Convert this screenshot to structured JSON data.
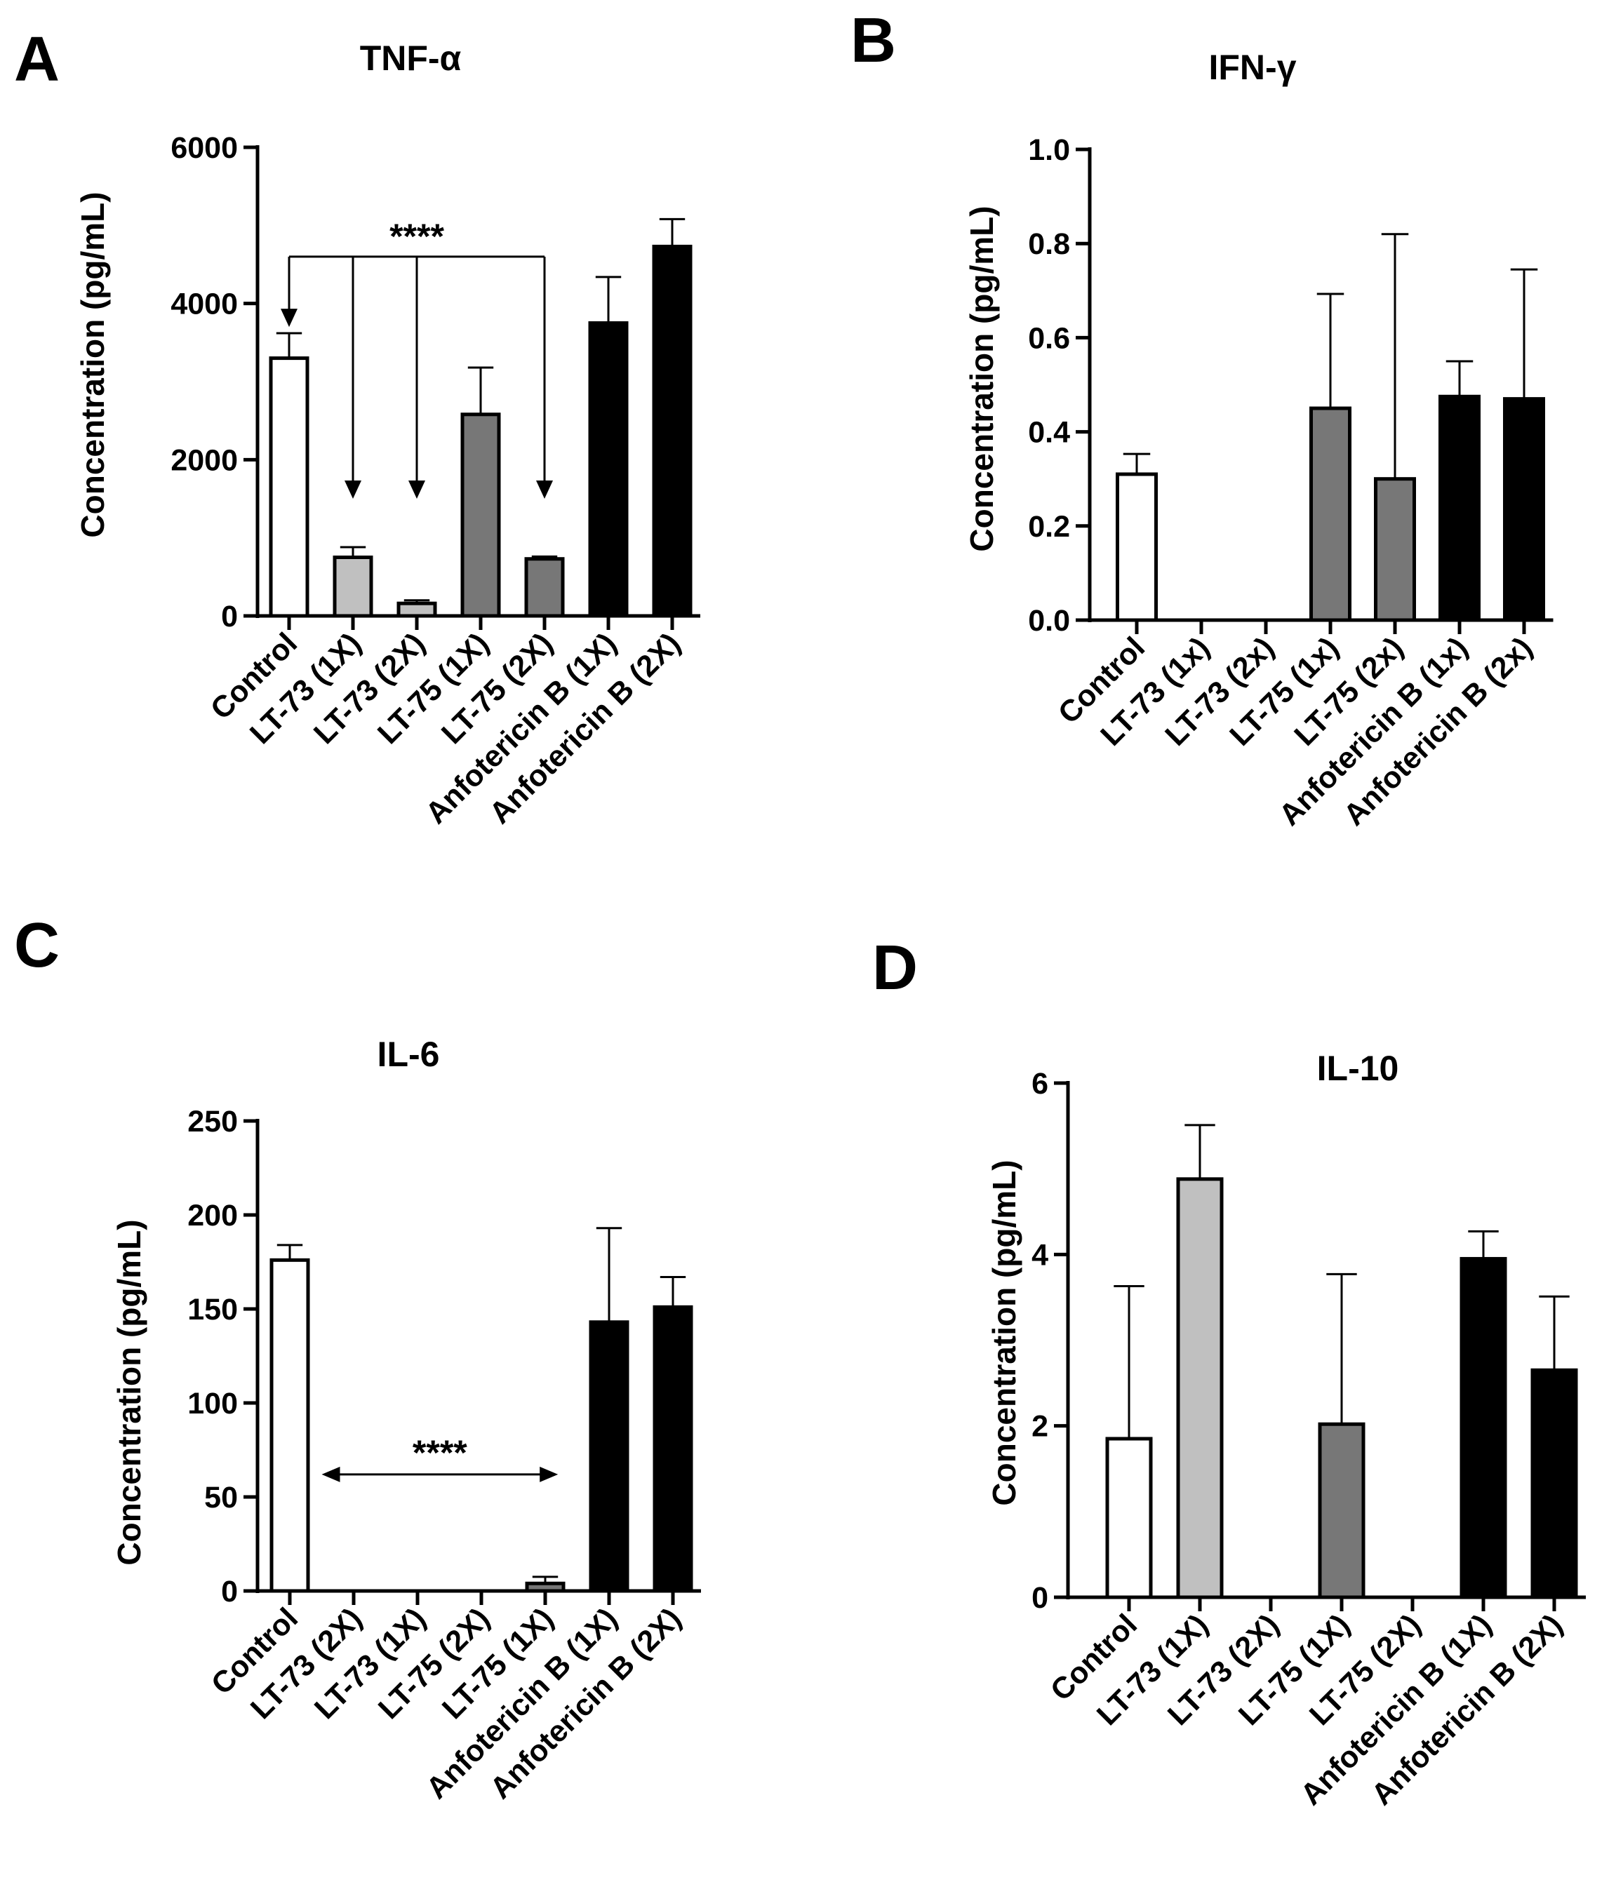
{
  "chart_data": [
    {
      "type": "bar",
      "panel_label": "A",
      "title": "TNF-α",
      "ylabel": "Concentration (pg/mL)",
      "xlabel": "",
      "ylim": [
        0,
        6000
      ],
      "yticks": [
        0,
        2000,
        4000,
        6000
      ],
      "ytick_labels": [
        "0",
        "2000",
        "4000",
        "6000"
      ],
      "categories": [
        "Control",
        "LT-73 (1X)",
        "LT-73 (2X)",
        "LT-75 (1X)",
        "LT-75 (2X)",
        "Anfotericin B (1X)",
        "Anfotericin B (2X)"
      ],
      "values": [
        3300,
        750,
        160,
        2580,
        730,
        3750,
        4730
      ],
      "errors": [
        320,
        130,
        40,
        600,
        30,
        590,
        350
      ],
      "fill_colors": [
        "#ffffff",
        "#c0c0c0",
        "#c0c0c0",
        "#777777",
        "#777777",
        "#000000",
        "#000000"
      ],
      "annotations": [
        {
          "type": "bracket-arrows",
          "label": "****",
          "from_index": 0,
          "to_index": 4,
          "arrow_indices": [
            0,
            1,
            2,
            4
          ],
          "y_value": 4600,
          "arrow_tips": [
            3700,
            1500,
            1500,
            1500
          ]
        }
      ]
    },
    {
      "type": "bar",
      "panel_label": "B",
      "title": "IFN-γ",
      "ylabel": "Concentration (pg/mL)",
      "xlabel": "",
      "ylim": [
        0,
        1.0
      ],
      "yticks": [
        0,
        0.2,
        0.4,
        0.6,
        0.8,
        1.0
      ],
      "ytick_labels": [
        "0.0",
        "0.2",
        "0.4",
        "0.6",
        "0.8",
        "1.0"
      ],
      "categories": [
        "Control",
        "LT-73 (1x)",
        "LT-73 (2x)",
        "LT-75 (1x)",
        "LT-75 (2x)",
        "Anfotericin B (1x)",
        "Anfotericin B (2x)"
      ],
      "values": [
        0.31,
        0,
        0,
        0.45,
        0.3,
        0.475,
        0.47
      ],
      "errors": [
        0.043,
        0,
        0,
        0.243,
        0.52,
        0.075,
        0.275
      ],
      "fill_colors": [
        "#ffffff",
        "#c0c0c0",
        "#c0c0c0",
        "#777777",
        "#777777",
        "#000000",
        "#000000"
      ],
      "annotations": []
    },
    {
      "type": "bar",
      "panel_label": "C",
      "title": "IL-6",
      "ylabel": "Concentration (pg/mL)",
      "xlabel": "",
      "ylim": [
        0,
        250
      ],
      "yticks": [
        0,
        50,
        100,
        150,
        200,
        250
      ],
      "ytick_labels": [
        "0",
        "50",
        "100",
        "150",
        "200",
        "250"
      ],
      "categories": [
        "Control",
        "LT-73 (2X)",
        "LT-73 (1X)",
        "LT-75 (2X)",
        "LT-75 (1X)",
        "Anfotericin B (1X)",
        "Anfotericin B (2X)"
      ],
      "values": [
        176,
        0,
        0,
        0,
        4,
        143,
        151
      ],
      "errors": [
        8,
        0,
        0,
        0,
        3.5,
        50,
        16
      ],
      "fill_colors": [
        "#ffffff",
        "#c0c0c0",
        "#c0c0c0",
        "#777777",
        "#777777",
        "#000000",
        "#000000"
      ],
      "annotations": [
        {
          "type": "double-arrow",
          "label": "****",
          "from_index": 0.5,
          "to_index": 4.2,
          "y_value": 62
        }
      ]
    },
    {
      "type": "bar",
      "panel_label": "D",
      "title": "IL-10",
      "ylabel": "Concentration (pg/mL)",
      "xlabel": "",
      "ylim": [
        0,
        6
      ],
      "yticks": [
        0,
        2,
        4,
        6
      ],
      "ytick_labels": [
        "0",
        "2",
        "4",
        "6"
      ],
      "categories": [
        "Control",
        "LT-73 (1X)",
        "LT-73 (2X)",
        "LT-75 (1X)",
        "LT-75 (2X)",
        "Anfotericin B (1X)",
        "Anfotericin B (2X)"
      ],
      "values": [
        1.85,
        4.88,
        0,
        2.02,
        0,
        3.95,
        2.65
      ],
      "errors": [
        1.78,
        0.63,
        0,
        1.75,
        0,
        0.32,
        0.86
      ],
      "fill_colors": [
        "#ffffff",
        "#c0c0c0",
        "#c0c0c0",
        "#777777",
        "#777777",
        "#000000",
        "#000000"
      ],
      "annotations": []
    }
  ]
}
